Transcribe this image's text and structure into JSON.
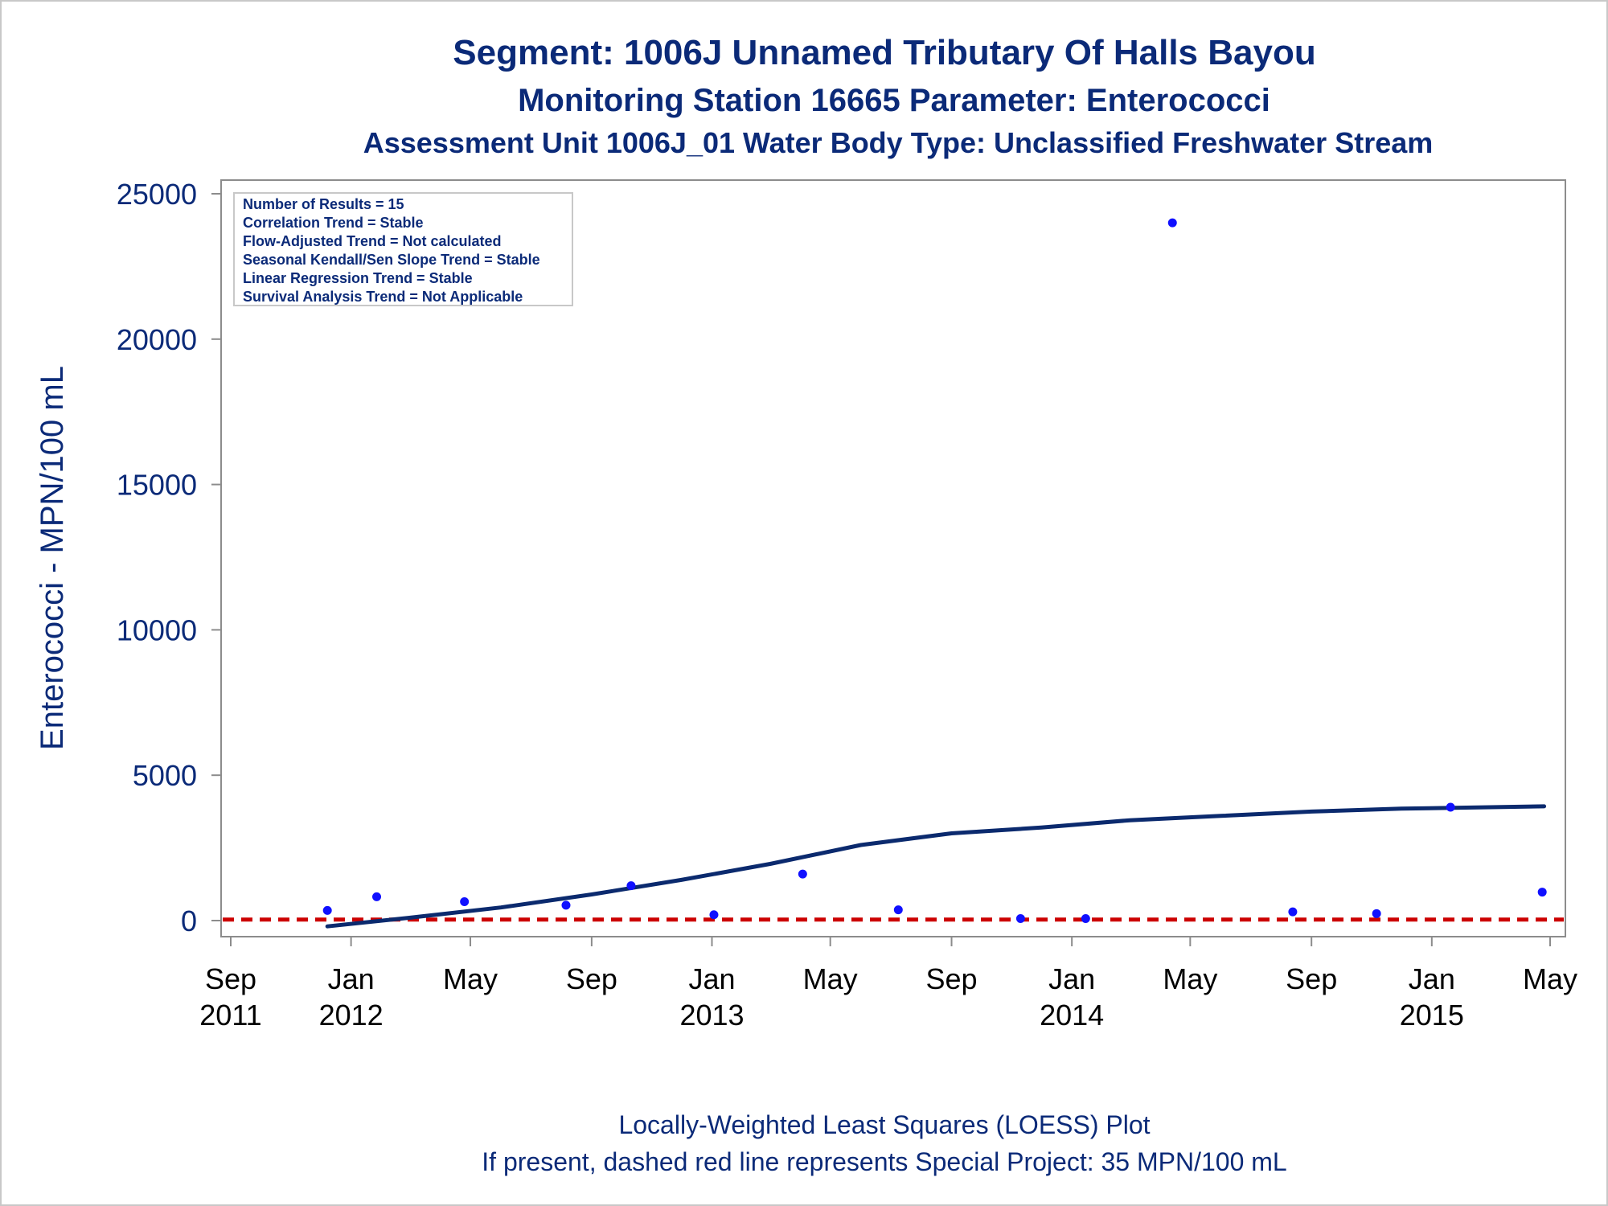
{
  "titles": {
    "line1": "Segment: 1006J  Unnamed Tributary Of Halls Bayou",
    "line2": "Monitoring Station 16665 Parameter: Enterococci",
    "line3": "Assessment Unit 1006J_01   Water Body Type: Unclassified Freshwater Stream"
  },
  "stats_box": [
    "Number of Results = 15",
    "Correlation Trend = Stable",
    "Flow-Adjusted Trend = Not calculated",
    "Seasonal Kendall/Sen Slope Trend = Stable",
    "Linear Regression Trend = Stable",
    "Survival Analysis Trend = Not Applicable"
  ],
  "footer": {
    "line1": "Locally-Weighted Least Squares (LOESS) Plot",
    "line2": "If present, dashed red line represents Special Project: 35 MPN/100 mL"
  },
  "colors": {
    "text": "#0b2a78",
    "points": "#1010ff",
    "loess": "#0b2a6e",
    "reference": "#cc0000",
    "axis": "#8c8c8c"
  },
  "chart_data": {
    "type": "scatter",
    "ylabel": "Enterococci - MPN/100 mL",
    "xlabel": "",
    "ylim": [
      0,
      25000
    ],
    "yticks": [
      0,
      5000,
      10000,
      15000,
      20000,
      25000
    ],
    "xlim": [
      "2011-09-01",
      "2015-05-01"
    ],
    "xticks": [
      {
        "date": "2011-09-01",
        "label1": "Sep",
        "label2": "2011"
      },
      {
        "date": "2012-01-01",
        "label1": "Jan",
        "label2": "2012"
      },
      {
        "date": "2012-05-01",
        "label1": "May",
        "label2": ""
      },
      {
        "date": "2012-09-01",
        "label1": "Sep",
        "label2": ""
      },
      {
        "date": "2013-01-01",
        "label1": "Jan",
        "label2": "2013"
      },
      {
        "date": "2013-05-01",
        "label1": "May",
        "label2": ""
      },
      {
        "date": "2013-09-01",
        "label1": "Sep",
        "label2": ""
      },
      {
        "date": "2014-01-01",
        "label1": "Jan",
        "label2": "2014"
      },
      {
        "date": "2014-05-01",
        "label1": "May",
        "label2": ""
      },
      {
        "date": "2014-09-01",
        "label1": "Sep",
        "label2": ""
      },
      {
        "date": "2015-01-01",
        "label1": "Jan",
        "label2": "2015"
      },
      {
        "date": "2015-05-01",
        "label1": "May",
        "label2": ""
      }
    ],
    "series": [
      {
        "type": "scatter",
        "points": [
          {
            "x": "2011-12-08",
            "y": 350
          },
          {
            "x": "2012-01-27",
            "y": 820
          },
          {
            "x": "2012-04-25",
            "y": 650
          },
          {
            "x": "2012-08-06",
            "y": 530
          },
          {
            "x": "2012-10-11",
            "y": 1200
          },
          {
            "x": "2013-01-03",
            "y": 200
          },
          {
            "x": "2013-04-03",
            "y": 1600
          },
          {
            "x": "2013-07-09",
            "y": 370
          },
          {
            "x": "2013-11-10",
            "y": 70
          },
          {
            "x": "2014-01-15",
            "y": 70
          },
          {
            "x": "2014-04-13",
            "y": 24000
          },
          {
            "x": "2014-08-13",
            "y": 300
          },
          {
            "x": "2014-11-06",
            "y": 240
          },
          {
            "x": "2015-01-20",
            "y": 3900
          },
          {
            "x": "2015-04-23",
            "y": 980
          }
        ]
      },
      {
        "type": "line",
        "points": [
          {
            "x": "2011-12-08",
            "y": -200
          },
          {
            "x": "2012-03-01",
            "y": 100
          },
          {
            "x": "2012-06-01",
            "y": 450
          },
          {
            "x": "2012-09-01",
            "y": 900
          },
          {
            "x": "2012-12-01",
            "y": 1400
          },
          {
            "x": "2013-03-01",
            "y": 1950
          },
          {
            "x": "2013-06-01",
            "y": 2600
          },
          {
            "x": "2013-09-01",
            "y": 3000
          },
          {
            "x": "2013-12-01",
            "y": 3200
          },
          {
            "x": "2014-03-01",
            "y": 3450
          },
          {
            "x": "2014-06-01",
            "y": 3600
          },
          {
            "x": "2014-09-01",
            "y": 3750
          },
          {
            "x": "2014-12-01",
            "y": 3850
          },
          {
            "x": "2015-04-25",
            "y": 3930
          }
        ]
      }
    ],
    "reference_line": {
      "y": 35
    }
  }
}
